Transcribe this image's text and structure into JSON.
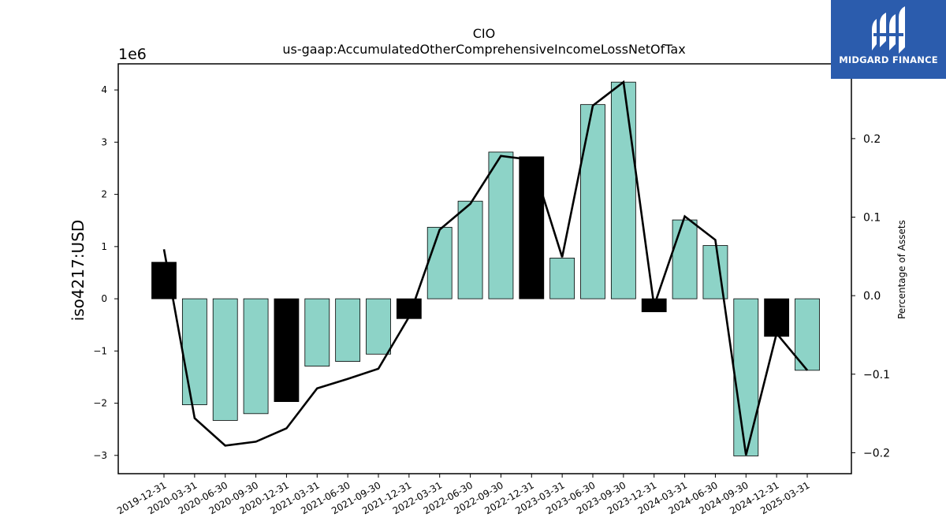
{
  "logo": {
    "text": "MIDGARD FINANCE",
    "background": "#2b5cad"
  },
  "chart_data": {
    "type": "bar",
    "title": "CIO",
    "subtitle": "us-gaap:AccumulatedOtherComprehensiveIncomeLossNetOfTax",
    "ylabel": "iso4217:USD",
    "y_offset_text": "1e6",
    "y2label": "Percentage of Assets",
    "categories": [
      "2019-12-31",
      "2020-03-31",
      "2020-06-30",
      "2020-09-30",
      "2020-12-31",
      "2021-03-31",
      "2021-06-30",
      "2021-09-30",
      "2021-12-31",
      "2022-03-31",
      "2022-06-30",
      "2022-09-30",
      "2022-12-31",
      "2023-03-31",
      "2023-06-30",
      "2023-09-30",
      "2023-12-31",
      "2024-03-31",
      "2024-06-30",
      "2024-09-30",
      "2024-12-31",
      "2025-03-31"
    ],
    "series": [
      {
        "kind": "bar",
        "axis": "left",
        "values": [
          700000,
          -2030000,
          -2330000,
          -2200000,
          -1970000,
          -1290000,
          -1200000,
          -1060000,
          -380000,
          1370000,
          1870000,
          2810000,
          2720000,
          780000,
          3720000,
          4150000,
          -250000,
          1510000,
          1020000,
          -3010000,
          -720000,
          -1370000
        ],
        "highlight": [
          true,
          false,
          false,
          false,
          true,
          false,
          false,
          false,
          true,
          false,
          false,
          false,
          true,
          false,
          false,
          false,
          true,
          false,
          false,
          false,
          true,
          false
        ]
      },
      {
        "kind": "line",
        "axis": "right",
        "values": [
          0.059,
          -0.156,
          -0.191,
          -0.186,
          -0.169,
          -0.118,
          -0.106,
          -0.093,
          -0.027,
          0.084,
          0.117,
          0.178,
          0.173,
          0.049,
          0.242,
          0.272,
          -0.013,
          0.101,
          0.071,
          -0.203,
          -0.048,
          -0.095
        ]
      }
    ],
    "ylim": [
      -3.35,
      4.5
    ],
    "y_ticks": [
      -3,
      -2,
      -1,
      0,
      1,
      2,
      3,
      4
    ],
    "y_tick_labels": [
      "−3",
      "−2",
      "−1",
      "0",
      "1",
      "2",
      "3",
      "4"
    ],
    "y2lim": [
      -0.2267,
      0.2952
    ],
    "y2_ticks": [
      -0.2,
      -0.1,
      0.0,
      0.1,
      0.2
    ],
    "y2_tick_labels": [
      "−0.2",
      "−0.1",
      "0.0",
      "0.1",
      "0.2"
    ],
    "colors": {
      "bar": "#8dd3c7",
      "bar_highlight": "#000000",
      "line": "#000000"
    },
    "grid": false
  }
}
